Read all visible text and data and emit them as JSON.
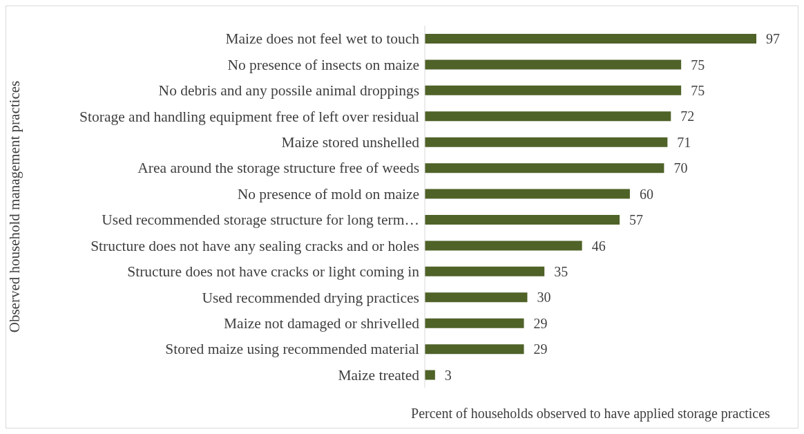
{
  "chart_data": {
    "type": "bar",
    "orientation": "horizontal",
    "ylabel": "Observed household management practices",
    "xlabel": "Percent of households observed to have applied storage practices",
    "categories": [
      "Maize does not feel wet to touch",
      "No presence of insects on maize",
      "No debris and any possile animal droppings",
      "Storage and handling equipment free of left over residual",
      "Maize stored unshelled",
      "Area around the storage structure free of weeds",
      "No presence of mold on maize",
      "Used recommended storage structure for long term…",
      "Structure does not have any sealing  cracks and or holes ",
      "Structure does not have cracks or light coming in",
      "Used recommended drying practices",
      "Maize not damaged or shrivelled",
      "Stored maize using recommended material",
      "Maize treated"
    ],
    "values": [
      97,
      75,
      75,
      72,
      71,
      70,
      60,
      57,
      46,
      35,
      30,
      29,
      29,
      3
    ],
    "color": "#4f6228",
    "data_labels": true,
    "grid": false
  }
}
